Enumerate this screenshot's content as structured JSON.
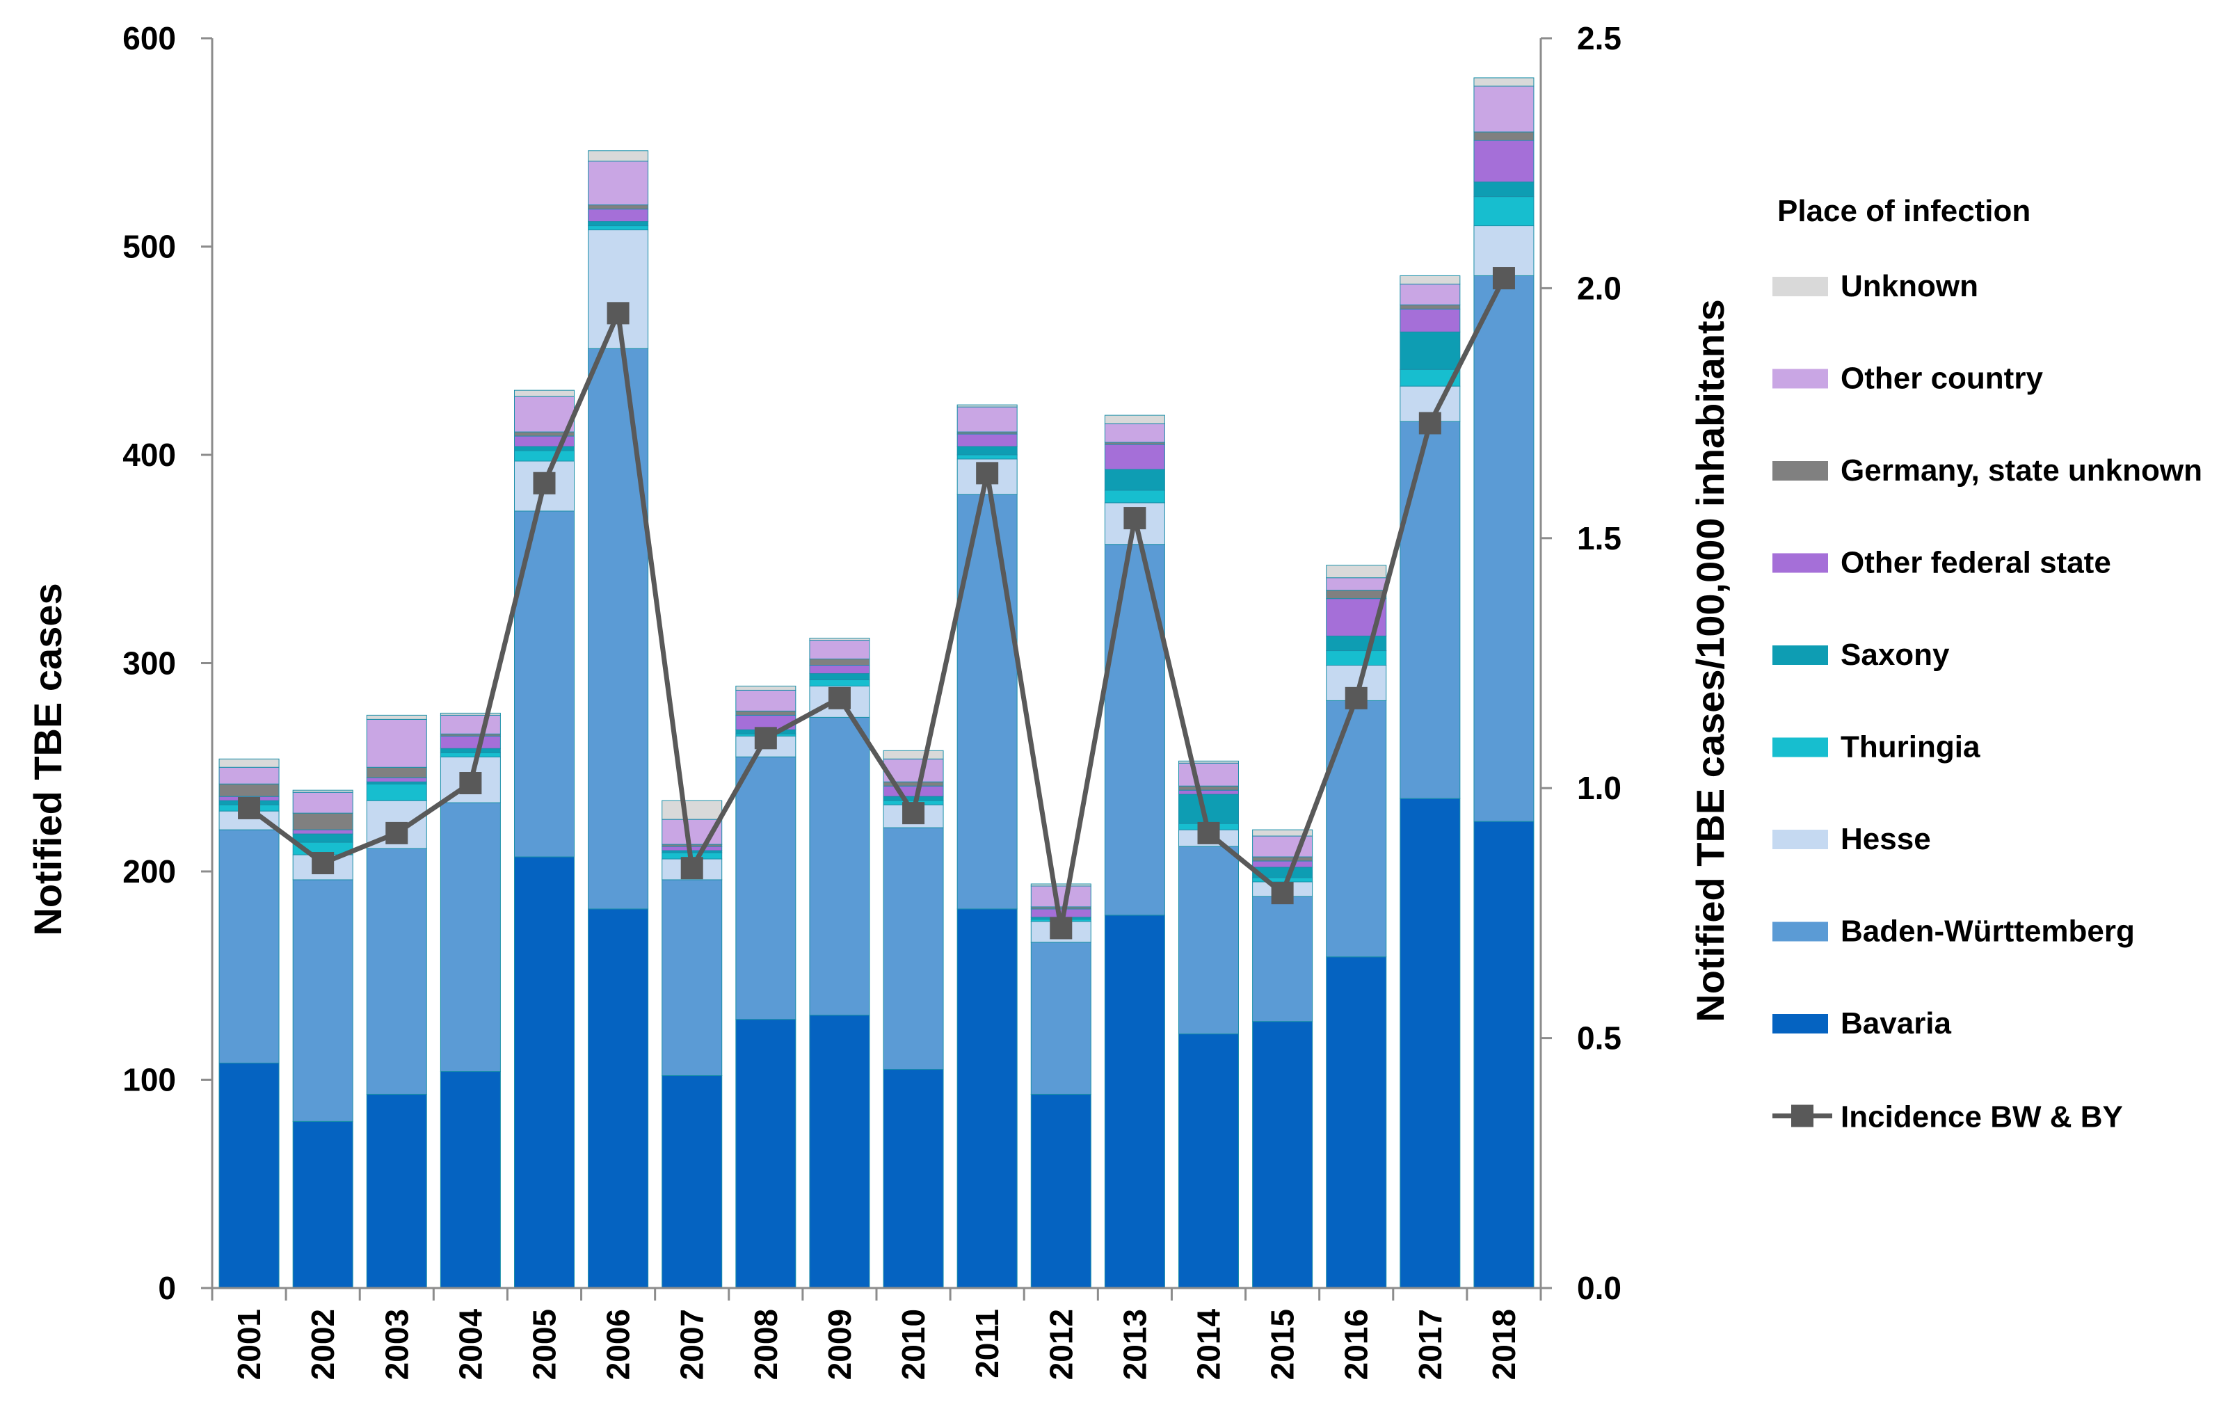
{
  "chart_data": {
    "type": "bar",
    "stacked": true,
    "title": "",
    "ylabel": "Notified TBE cases",
    "y2label": "Notified TBE cases/100,000 inhabitants",
    "ylim": [
      0,
      600
    ],
    "y2lim": [
      0,
      2.5
    ],
    "yticks": [
      "0",
      "100",
      "200",
      "300",
      "400",
      "500",
      "600"
    ],
    "y2ticks": [
      "0.0",
      "0.5",
      "1.0",
      "1.5",
      "2.0",
      "2.5"
    ],
    "categories": [
      "2001",
      "2002",
      "2003",
      "2004",
      "2005",
      "2006",
      "2007",
      "2008",
      "2009",
      "2010",
      "2011",
      "2012",
      "2013",
      "2014",
      "2015",
      "2016",
      "2017",
      "2018"
    ],
    "legend_title": "Place of infection",
    "legend_position": "right",
    "series": [
      {
        "name": "Bavaria",
        "color": "#0563C1",
        "values": [
          108,
          80,
          93,
          104,
          207,
          182,
          102,
          129,
          131,
          105,
          182,
          93,
          179,
          122,
          128,
          159,
          235,
          224
        ]
      },
      {
        "name": "Baden-Württemberg",
        "color": "#5B9BD5",
        "values": [
          112,
          116,
          118,
          129,
          166,
          269,
          94,
          126,
          143,
          116,
          199,
          73,
          178,
          90,
          60,
          123,
          181,
          262
        ]
      },
      {
        "name": "Hesse",
        "color": "#C5D9F1",
        "values": [
          9,
          12,
          23,
          22,
          24,
          57,
          10,
          10,
          15,
          11,
          17,
          10,
          20,
          8,
          7,
          17,
          17,
          24
        ]
      },
      {
        "name": "Thuringia",
        "color": "#17BECF",
        "values": [
          3,
          6,
          8,
          2,
          5,
          2,
          3,
          1,
          3,
          2,
          2,
          1,
          6,
          3,
          2,
          7,
          8,
          14
        ]
      },
      {
        "name": "Saxony",
        "color": "#0E9DB3",
        "values": [
          2,
          4,
          1,
          2,
          2,
          2,
          1,
          2,
          3,
          2,
          4,
          1,
          10,
          14,
          5,
          7,
          18,
          7
        ]
      },
      {
        "name": "Other federal state",
        "color": "#A56FD8",
        "values": [
          2,
          2,
          2,
          6,
          5,
          6,
          2,
          7,
          4,
          5,
          6,
          4,
          12,
          2,
          3,
          18,
          11,
          20
        ]
      },
      {
        "name": "Germany, state unknown",
        "color": "#808080",
        "values": [
          6,
          8,
          5,
          1,
          2,
          2,
          1,
          2,
          3,
          2,
          1,
          1,
          1,
          2,
          2,
          4,
          2,
          4
        ]
      },
      {
        "name": "Other country",
        "color": "#C9A6E4",
        "values": [
          8,
          10,
          23,
          9,
          17,
          21,
          12,
          10,
          9,
          11,
          12,
          10,
          9,
          11,
          10,
          6,
          10,
          22
        ]
      },
      {
        "name": "Unknown",
        "color": "#D9D9D9",
        "values": [
          4,
          1,
          2,
          1,
          3,
          5,
          9,
          2,
          1,
          4,
          1,
          1,
          4,
          1,
          3,
          6,
          4,
          4
        ]
      }
    ],
    "line_series": {
      "name": "Incidence BW & BY",
      "color": "#595959",
      "axis": "right",
      "values": [
        0.96,
        0.85,
        0.91,
        1.01,
        1.61,
        1.95,
        0.84,
        1.1,
        1.18,
        0.95,
        1.63,
        0.72,
        1.54,
        0.91,
        0.79,
        1.18,
        1.73,
        2.02
      ]
    }
  }
}
